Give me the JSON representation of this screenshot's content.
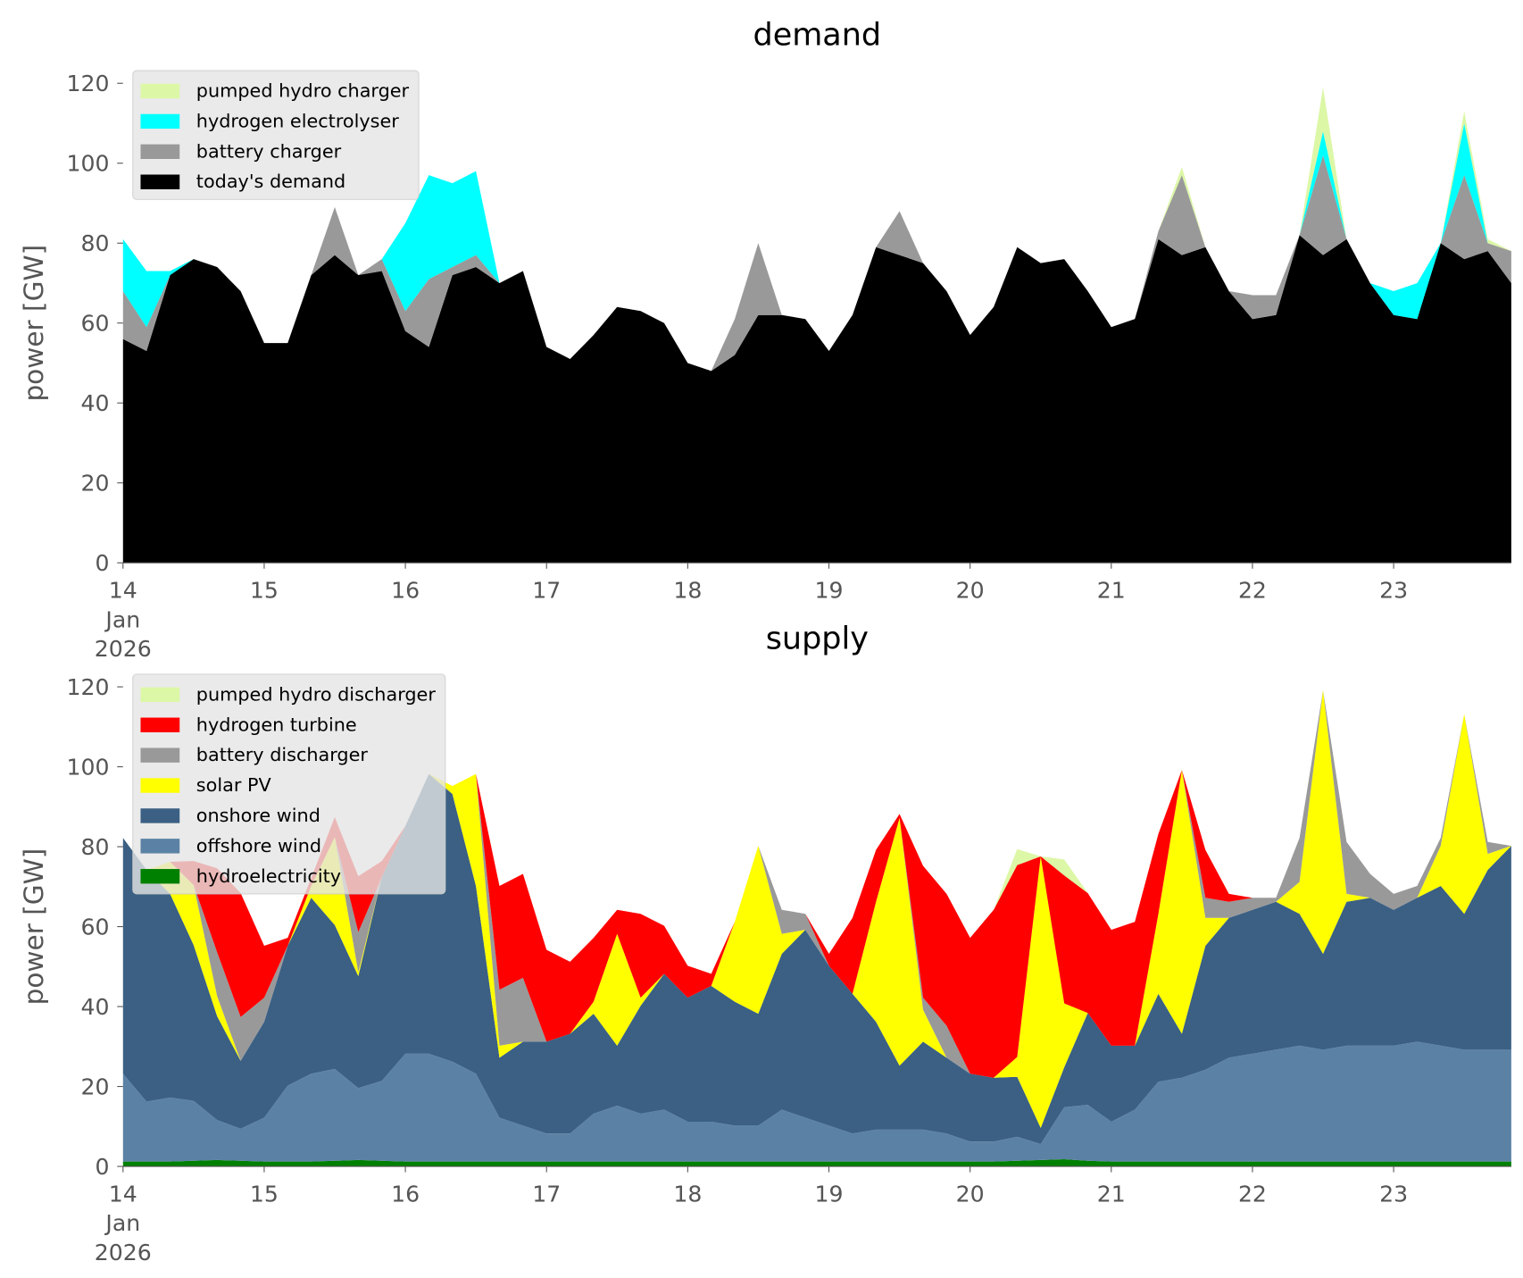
{
  "chart_data": [
    {
      "type": "area",
      "stacked": true,
      "title": "demand",
      "ylabel": "power [GW]",
      "legend": "upper left",
      "x": [
        "2026-01-14T00:00",
        "2026-01-14T04:00",
        "2026-01-14T08:00",
        "2026-01-14T12:00",
        "2026-01-14T16:00",
        "2026-01-14T20:00",
        "2026-01-15T00:00",
        "2026-01-15T04:00",
        "2026-01-15T08:00",
        "2026-01-15T12:00",
        "2026-01-15T16:00",
        "2026-01-15T20:00",
        "2026-01-16T00:00",
        "2026-01-16T04:00",
        "2026-01-16T08:00",
        "2026-01-16T12:00",
        "2026-01-16T16:00",
        "2026-01-16T20:00",
        "2026-01-17T00:00",
        "2026-01-17T04:00",
        "2026-01-17T08:00",
        "2026-01-17T12:00",
        "2026-01-17T16:00",
        "2026-01-17T20:00",
        "2026-01-18T00:00",
        "2026-01-18T04:00",
        "2026-01-18T08:00",
        "2026-01-18T12:00",
        "2026-01-18T16:00",
        "2026-01-18T20:00",
        "2026-01-19T00:00",
        "2026-01-19T04:00",
        "2026-01-19T08:00",
        "2026-01-19T12:00",
        "2026-01-19T16:00",
        "2026-01-19T20:00",
        "2026-01-20T00:00",
        "2026-01-20T04:00",
        "2026-01-20T08:00",
        "2026-01-20T12:00",
        "2026-01-20T16:00",
        "2026-01-20T20:00",
        "2026-01-21T00:00",
        "2026-01-21T04:00",
        "2026-01-21T08:00",
        "2026-01-21T12:00",
        "2026-01-21T16:00",
        "2026-01-21T20:00",
        "2026-01-22T00:00",
        "2026-01-22T04:00",
        "2026-01-22T08:00",
        "2026-01-22T12:00",
        "2026-01-22T16:00",
        "2026-01-22T20:00",
        "2026-01-23T00:00",
        "2026-01-23T04:00",
        "2026-01-23T08:00",
        "2026-01-23T12:00",
        "2026-01-23T16:00",
        "2026-01-23T20:00"
      ],
      "xlim": [
        "2026-01-14T00:00",
        "2026-01-23T20:00"
      ],
      "xticks": [
        {
          "value": "2026-01-14T00:00",
          "label": "14\nJan\n2026"
        },
        {
          "value": "2026-01-15T00:00",
          "label": "15"
        },
        {
          "value": "2026-01-16T00:00",
          "label": "16"
        },
        {
          "value": "2026-01-17T00:00",
          "label": "17"
        },
        {
          "value": "2026-01-18T00:00",
          "label": "18"
        },
        {
          "value": "2026-01-19T00:00",
          "label": "19"
        },
        {
          "value": "2026-01-20T00:00",
          "label": "20"
        },
        {
          "value": "2026-01-21T00:00",
          "label": "21"
        },
        {
          "value": "2026-01-22T00:00",
          "label": "22"
        },
        {
          "value": "2026-01-23T00:00",
          "label": "23"
        }
      ],
      "ylim": [
        0,
        120
      ],
      "yticks": [
        0,
        20,
        40,
        60,
        80,
        100,
        120
      ],
      "series": [
        {
          "name": "pumped hydro charger",
          "color": "#dcf7a6",
          "values": [
            0,
            0,
            0,
            0,
            0,
            0,
            0,
            0,
            0,
            0,
            0,
            0,
            0,
            0,
            0,
            0,
            0,
            0,
            0,
            0,
            0,
            0,
            0,
            0,
            0,
            0,
            0,
            0,
            0,
            0,
            0,
            0,
            0,
            0,
            0,
            0,
            0,
            0,
            0,
            0,
            0,
            0,
            0,
            0,
            0,
            2,
            0,
            0,
            0,
            0,
            0,
            11,
            0,
            0,
            0,
            0,
            0,
            3,
            1,
            0
          ]
        },
        {
          "name": "hydrogen electrolyser",
          "color": "#00ffff",
          "values": [
            13,
            14,
            1,
            0,
            0,
            0,
            0,
            0,
            0,
            0,
            0,
            0,
            22,
            26,
            21,
            21,
            0,
            0,
            0,
            0,
            0,
            0,
            0,
            0,
            0,
            0,
            0,
            0,
            0,
            0,
            0,
            0,
            0,
            0,
            0,
            0,
            0,
            0,
            0,
            0,
            0,
            0,
            0,
            0,
            0,
            0,
            0,
            0,
            0,
            0,
            0,
            6,
            0,
            0,
            6,
            9,
            0,
            13,
            0,
            0
          ]
        },
        {
          "name": "battery charger",
          "color": "#999999",
          "values": [
            12,
            6,
            0,
            0,
            0,
            0,
            0,
            0,
            0,
            12,
            0,
            3,
            5,
            17,
            2,
            3,
            0,
            0,
            0,
            0,
            0,
            0,
            0,
            0,
            0,
            0,
            9,
            18,
            0,
            0,
            0,
            0,
            0,
            11,
            0,
            0,
            0,
            0,
            0,
            0,
            0,
            0,
            0,
            0,
            2,
            20,
            0,
            0,
            6,
            5,
            0,
            25,
            0,
            0,
            0,
            0,
            0,
            21,
            2,
            8
          ]
        },
        {
          "name": "today's demand",
          "color": "#000000",
          "values": [
            56,
            53,
            72,
            76,
            74,
            68,
            55,
            55,
            72,
            77,
            72,
            73,
            58,
            54,
            72,
            74,
            70,
            73,
            54,
            51,
            57,
            64,
            63,
            60,
            50,
            48,
            52,
            62,
            62,
            61,
            53,
            62,
            79,
            77,
            75,
            68,
            57,
            64,
            79,
            75,
            76,
            68,
            59,
            61,
            81,
            77,
            79,
            68,
            61,
            62,
            82,
            77,
            81,
            70,
            62,
            61,
            80,
            76,
            78,
            70
          ]
        }
      ]
    },
    {
      "type": "area",
      "stacked": true,
      "title": "supply",
      "ylabel": "power [GW]",
      "legend": "upper left",
      "x": [
        "2026-01-14T00:00",
        "2026-01-14T04:00",
        "2026-01-14T08:00",
        "2026-01-14T12:00",
        "2026-01-14T16:00",
        "2026-01-14T20:00",
        "2026-01-15T00:00",
        "2026-01-15T04:00",
        "2026-01-15T08:00",
        "2026-01-15T12:00",
        "2026-01-15T16:00",
        "2026-01-15T20:00",
        "2026-01-16T00:00",
        "2026-01-16T04:00",
        "2026-01-16T08:00",
        "2026-01-16T12:00",
        "2026-01-16T16:00",
        "2026-01-16T20:00",
        "2026-01-17T00:00",
        "2026-01-17T04:00",
        "2026-01-17T08:00",
        "2026-01-17T12:00",
        "2026-01-17T16:00",
        "2026-01-17T20:00",
        "2026-01-18T00:00",
        "2026-01-18T04:00",
        "2026-01-18T08:00",
        "2026-01-18T12:00",
        "2026-01-18T16:00",
        "2026-01-18T20:00",
        "2026-01-19T00:00",
        "2026-01-19T04:00",
        "2026-01-19T08:00",
        "2026-01-19T12:00",
        "2026-01-19T16:00",
        "2026-01-19T20:00",
        "2026-01-20T00:00",
        "2026-01-20T04:00",
        "2026-01-20T08:00",
        "2026-01-20T12:00",
        "2026-01-20T16:00",
        "2026-01-20T20:00",
        "2026-01-21T00:00",
        "2026-01-21T04:00",
        "2026-01-21T08:00",
        "2026-01-21T12:00",
        "2026-01-21T16:00",
        "2026-01-21T20:00",
        "2026-01-22T00:00",
        "2026-01-22T04:00",
        "2026-01-22T08:00",
        "2026-01-22T12:00",
        "2026-01-22T16:00",
        "2026-01-22T20:00",
        "2026-01-23T00:00",
        "2026-01-23T04:00",
        "2026-01-23T08:00",
        "2026-01-23T12:00",
        "2026-01-23T16:00",
        "2026-01-23T20:00"
      ],
      "xlim": [
        "2026-01-14T00:00",
        "2026-01-23T20:00"
      ],
      "xticks": [
        {
          "value": "2026-01-14T00:00",
          "label": "14\nJan\n2026"
        },
        {
          "value": "2026-01-15T00:00",
          "label": "15"
        },
        {
          "value": "2026-01-16T00:00",
          "label": "16"
        },
        {
          "value": "2026-01-17T00:00",
          "label": "17"
        },
        {
          "value": "2026-01-18T00:00",
          "label": "18"
        },
        {
          "value": "2026-01-19T00:00",
          "label": "19"
        },
        {
          "value": "2026-01-20T00:00",
          "label": "20"
        },
        {
          "value": "2026-01-21T00:00",
          "label": "21"
        },
        {
          "value": "2026-01-22T00:00",
          "label": "22"
        },
        {
          "value": "2026-01-23T00:00",
          "label": "23"
        }
      ],
      "ylim": [
        0,
        120
      ],
      "yticks": [
        0,
        20,
        40,
        60,
        80,
        100,
        120
      ],
      "series": [
        {
          "name": "pumped hydro discharger",
          "color": "#dcf7a6",
          "values": [
            0,
            0,
            0,
            0,
            0,
            0,
            0,
            0,
            0,
            0,
            0,
            0,
            0,
            0,
            0,
            0,
            0,
            0,
            0,
            0,
            0,
            0,
            0,
            0,
            0,
            0,
            0,
            0,
            0,
            0,
            0,
            0,
            0,
            0,
            0,
            0,
            0,
            0,
            4,
            0,
            4,
            0,
            0,
            0,
            0,
            0,
            0,
            0,
            0,
            0,
            0,
            0,
            0,
            0,
            0,
            0,
            0,
            0,
            0,
            0
          ]
        },
        {
          "name": "hydrogen turbine",
          "color": "#ff0000",
          "values": [
            0,
            0,
            0,
            6,
            21,
            31,
            13,
            2,
            2,
            5,
            14,
            4,
            0,
            0,
            0,
            0,
            26,
            26,
            23,
            18,
            16,
            6,
            21,
            12,
            8,
            3,
            0,
            0,
            0,
            0,
            3,
            19,
            13,
            1,
            33,
            33,
            34,
            42,
            48,
            0,
            32,
            30,
            29,
            31,
            20,
            0,
            12,
            2,
            0,
            0,
            0,
            0,
            0,
            0,
            0,
            0,
            0,
            0,
            0,
            0
          ]
        },
        {
          "name": "battery discharger",
          "color": "#999999",
          "values": [
            0,
            0,
            0,
            0,
            11,
            11,
            6,
            0,
            0,
            0,
            10,
            0,
            0,
            0,
            0,
            0,
            14,
            16,
            0,
            0,
            0,
            0,
            0,
            0,
            0,
            0,
            0,
            0,
            6,
            4,
            0,
            0,
            0,
            0,
            3,
            8,
            0,
            0,
            0,
            0,
            0,
            0,
            0,
            0,
            0,
            0,
            5,
            4,
            3,
            1,
            11,
            0,
            13,
            6,
            4,
            3,
            2,
            0,
            3,
            0
          ]
        },
        {
          "name": "solar PV",
          "color": "#ffff00",
          "values": [
            0,
            0,
            8,
            15,
            5,
            0,
            0,
            0,
            3,
            22,
            1,
            0,
            0,
            0,
            2,
            28,
            3,
            0,
            0,
            0,
            3,
            28,
            2,
            0,
            0,
            0,
            20,
            42,
            5,
            0,
            0,
            0,
            30,
            62,
            8,
            0,
            0,
            0,
            5,
            68,
            16,
            0,
            0,
            0,
            20,
            66,
            7,
            0,
            0,
            0,
            8,
            66,
            2,
            0,
            0,
            0,
            10,
            50,
            4,
            0
          ]
        },
        {
          "name": "onshore wind",
          "color": "#3b6084",
          "values": [
            59,
            58,
            51,
            39,
            26,
            17,
            24,
            35,
            44,
            36,
            28,
            51,
            57,
            70,
            67,
            47,
            15,
            21,
            23,
            25,
            25,
            15,
            27,
            34,
            31,
            34,
            31,
            28,
            39,
            47,
            40,
            35,
            27,
            16,
            22,
            19,
            17,
            16,
            15,
            4,
            10,
            23,
            19,
            16,
            22,
            11,
            31,
            35,
            36,
            37,
            33,
            24,
            36,
            37,
            34,
            36,
            40,
            34,
            45,
            51
          ]
        },
        {
          "name": "offshore wind",
          "color": "#5b82a5",
          "values": [
            22,
            15,
            16,
            15,
            10,
            8,
            11,
            19,
            22,
            23,
            18,
            20,
            27,
            27,
            25,
            22,
            11,
            9,
            7,
            7,
            12,
            14,
            12,
            13,
            10,
            10,
            9,
            9,
            13,
            11,
            9,
            7,
            8,
            8,
            8,
            7,
            5,
            5,
            6,
            4,
            13,
            14,
            10,
            13,
            20,
            21,
            23,
            26,
            27,
            28,
            29,
            28,
            29,
            29,
            29,
            30,
            29,
            28,
            28,
            28
          ]
        },
        {
          "name": "hydroelectricity",
          "color": "#008000",
          "values": [
            1.2,
            1.2,
            1.2,
            1.4,
            1.6,
            1.4,
            1.2,
            1.2,
            1.2,
            1.4,
            1.6,
            1.4,
            1.2,
            1.2,
            1.2,
            1.2,
            1.2,
            1.2,
            1.2,
            1.2,
            1.2,
            1.2,
            1.2,
            1.2,
            1.2,
            1.2,
            1.2,
            1.2,
            1.2,
            1.2,
            1.2,
            1.2,
            1.2,
            1.2,
            1.2,
            1.2,
            1.2,
            1.2,
            1.4,
            1.6,
            1.8,
            1.4,
            1.2,
            1.2,
            1.2,
            1.2,
            1.2,
            1.2,
            1.2,
            1.2,
            1.2,
            1.2,
            1.2,
            1.2,
            1.2,
            1.2,
            1.2,
            1.2,
            1.2,
            1.2
          ]
        }
      ]
    }
  ]
}
